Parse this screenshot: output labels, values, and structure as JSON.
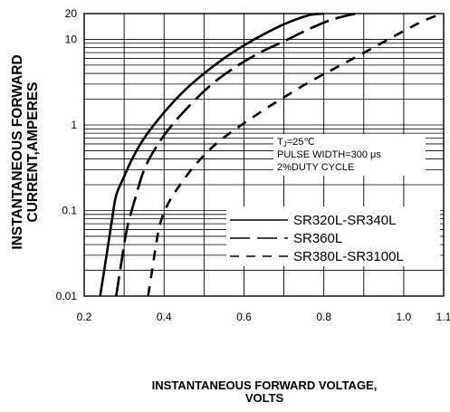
{
  "chart_data": {
    "type": "line",
    "ylabel_line1": "INSTANTANEOUS FORWARD",
    "ylabel_line2": "CURRENT,AMPERES",
    "xlabel_line1": "INSTANTANEOUS FORWARD VOLTAGE,",
    "xlabel_line2": "VOLTS",
    "xlim": [
      0.2,
      1.1
    ],
    "ylim": [
      0.01,
      20
    ],
    "yscale": "log",
    "x_ticks": [
      {
        "value": 0.2,
        "label": "0.2"
      },
      {
        "value": 0.4,
        "label": "0.4"
      },
      {
        "value": 0.6,
        "label": "0.6"
      },
      {
        "value": 0.8,
        "label": "0.8"
      },
      {
        "value": 1.0,
        "label": "1.0"
      },
      {
        "value": 1.1,
        "label": "1.1"
      }
    ],
    "y_ticks": [
      {
        "value": 0.01,
        "label": "0.01"
      },
      {
        "value": 0.1,
        "label": "0.1"
      },
      {
        "value": 1,
        "label": "1"
      },
      {
        "value": 10,
        "label": "10"
      },
      {
        "value": 20,
        "label": "20"
      }
    ],
    "grid": true,
    "conditions": {
      "tj_prefix": "T",
      "tj_sub": "J",
      "tj_value": "=25℃",
      "pulse": "PULSE WIDTH=300 μs",
      "duty": "2%DUTY CYCLE"
    },
    "legend_position": "lower-right",
    "series": [
      {
        "name": "SR320L-SR340L",
        "style": "solid",
        "points": [
          [
            0.24,
            0.01
          ],
          [
            0.25,
            0.02
          ],
          [
            0.26,
            0.04
          ],
          [
            0.27,
            0.08
          ],
          [
            0.28,
            0.15
          ],
          [
            0.3,
            0.25
          ],
          [
            0.32,
            0.4
          ],
          [
            0.35,
            0.7
          ],
          [
            0.4,
            1.4
          ],
          [
            0.45,
            2.5
          ],
          [
            0.5,
            4
          ],
          [
            0.55,
            6
          ],
          [
            0.6,
            8.5
          ],
          [
            0.65,
            11.5
          ],
          [
            0.7,
            15
          ],
          [
            0.76,
            19
          ],
          [
            0.8,
            20
          ]
        ]
      },
      {
        "name": "SR360L",
        "style": "dashed",
        "points": [
          [
            0.28,
            0.01
          ],
          [
            0.29,
            0.02
          ],
          [
            0.3,
            0.04
          ],
          [
            0.31,
            0.07
          ],
          [
            0.33,
            0.15
          ],
          [
            0.35,
            0.3
          ],
          [
            0.38,
            0.55
          ],
          [
            0.42,
            1
          ],
          [
            0.47,
            1.8
          ],
          [
            0.52,
            3
          ],
          [
            0.58,
            4.8
          ],
          [
            0.64,
            7
          ],
          [
            0.7,
            9.5
          ],
          [
            0.76,
            13
          ],
          [
            0.82,
            17
          ],
          [
            0.88,
            20
          ]
        ]
      },
      {
        "name": "SR380L-SR3100L",
        "style": "dashed-short",
        "points": [
          [
            0.36,
            0.01
          ],
          [
            0.37,
            0.02
          ],
          [
            0.38,
            0.04
          ],
          [
            0.39,
            0.07
          ],
          [
            0.41,
            0.12
          ],
          [
            0.44,
            0.2
          ],
          [
            0.48,
            0.35
          ],
          [
            0.53,
            0.6
          ],
          [
            0.58,
            0.9
          ],
          [
            0.64,
            1.4
          ],
          [
            0.7,
            2.1
          ],
          [
            0.76,
            3.1
          ],
          [
            0.82,
            4.4
          ],
          [
            0.88,
            6.2
          ],
          [
            0.94,
            8.8
          ],
          [
            1.0,
            12.5
          ],
          [
            1.05,
            16.5
          ],
          [
            1.09,
            19.5
          ]
        ]
      }
    ]
  }
}
